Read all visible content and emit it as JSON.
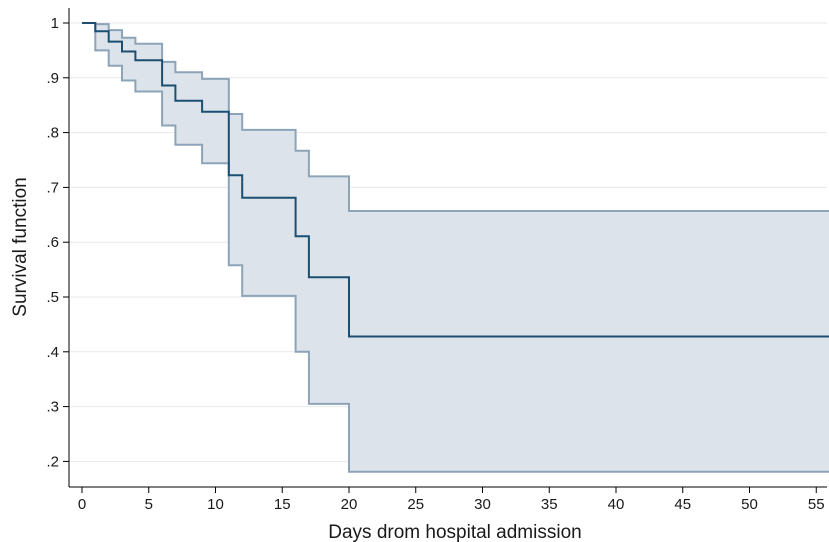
{
  "chart_data": {
    "type": "line",
    "title": "",
    "xlabel": "Days drom hospital admission",
    "ylabel": "Survival function",
    "xlim": [
      0,
      56
    ],
    "ylim": [
      0.18,
      1.02
    ],
    "x_ticks": [
      0,
      5,
      10,
      15,
      20,
      25,
      30,
      35,
      40,
      45,
      50,
      55
    ],
    "x_tick_labels": [
      "0",
      "5",
      "10",
      "15",
      "20",
      "25",
      "30",
      "35",
      "40",
      "45",
      "50",
      "55"
    ],
    "y_ticks": [
      1,
      0.9,
      0.8,
      0.7,
      0.6,
      0.5,
      0.4,
      0.3,
      0.2
    ],
    "y_tick_labels": [
      "1",
      ".9",
      ".8",
      ".7",
      ".6",
      ".5",
      ".4",
      ".3",
      ".2"
    ],
    "grid": true,
    "legend": "none",
    "colors": {
      "survival": "#1b4f72",
      "ci_fill": "#dde3ea",
      "ci_line": "#8da4b8",
      "grid": "#e6eaee"
    },
    "series": [
      {
        "role": "survival",
        "step": true,
        "x": [
          0,
          1,
          2,
          3,
          4,
          6,
          7,
          9,
          11,
          12,
          16,
          17,
          20,
          56
        ],
        "y": [
          1.0,
          0.985,
          0.966,
          0.948,
          0.932,
          0.886,
          0.858,
          0.838,
          0.722,
          0.681,
          0.611,
          0.536,
          0.428,
          0.428
        ]
      },
      {
        "role": "upper-ci",
        "step": true,
        "x": [
          0,
          1,
          2,
          3,
          4,
          6,
          7,
          9,
          11,
          12,
          16,
          17,
          20,
          56
        ],
        "y": [
          1.0,
          0.998,
          0.987,
          0.973,
          0.962,
          0.929,
          0.91,
          0.898,
          0.834,
          0.805,
          0.767,
          0.72,
          0.657,
          0.657
        ]
      },
      {
        "role": "lower-ci",
        "step": true,
        "x": [
          0,
          1,
          2,
          3,
          4,
          6,
          7,
          9,
          11,
          12,
          16,
          17,
          20,
          56
        ],
        "y": [
          1.0,
          0.95,
          0.922,
          0.895,
          0.875,
          0.813,
          0.778,
          0.744,
          0.558,
          0.502,
          0.4,
          0.305,
          0.181,
          0.181
        ]
      }
    ]
  }
}
